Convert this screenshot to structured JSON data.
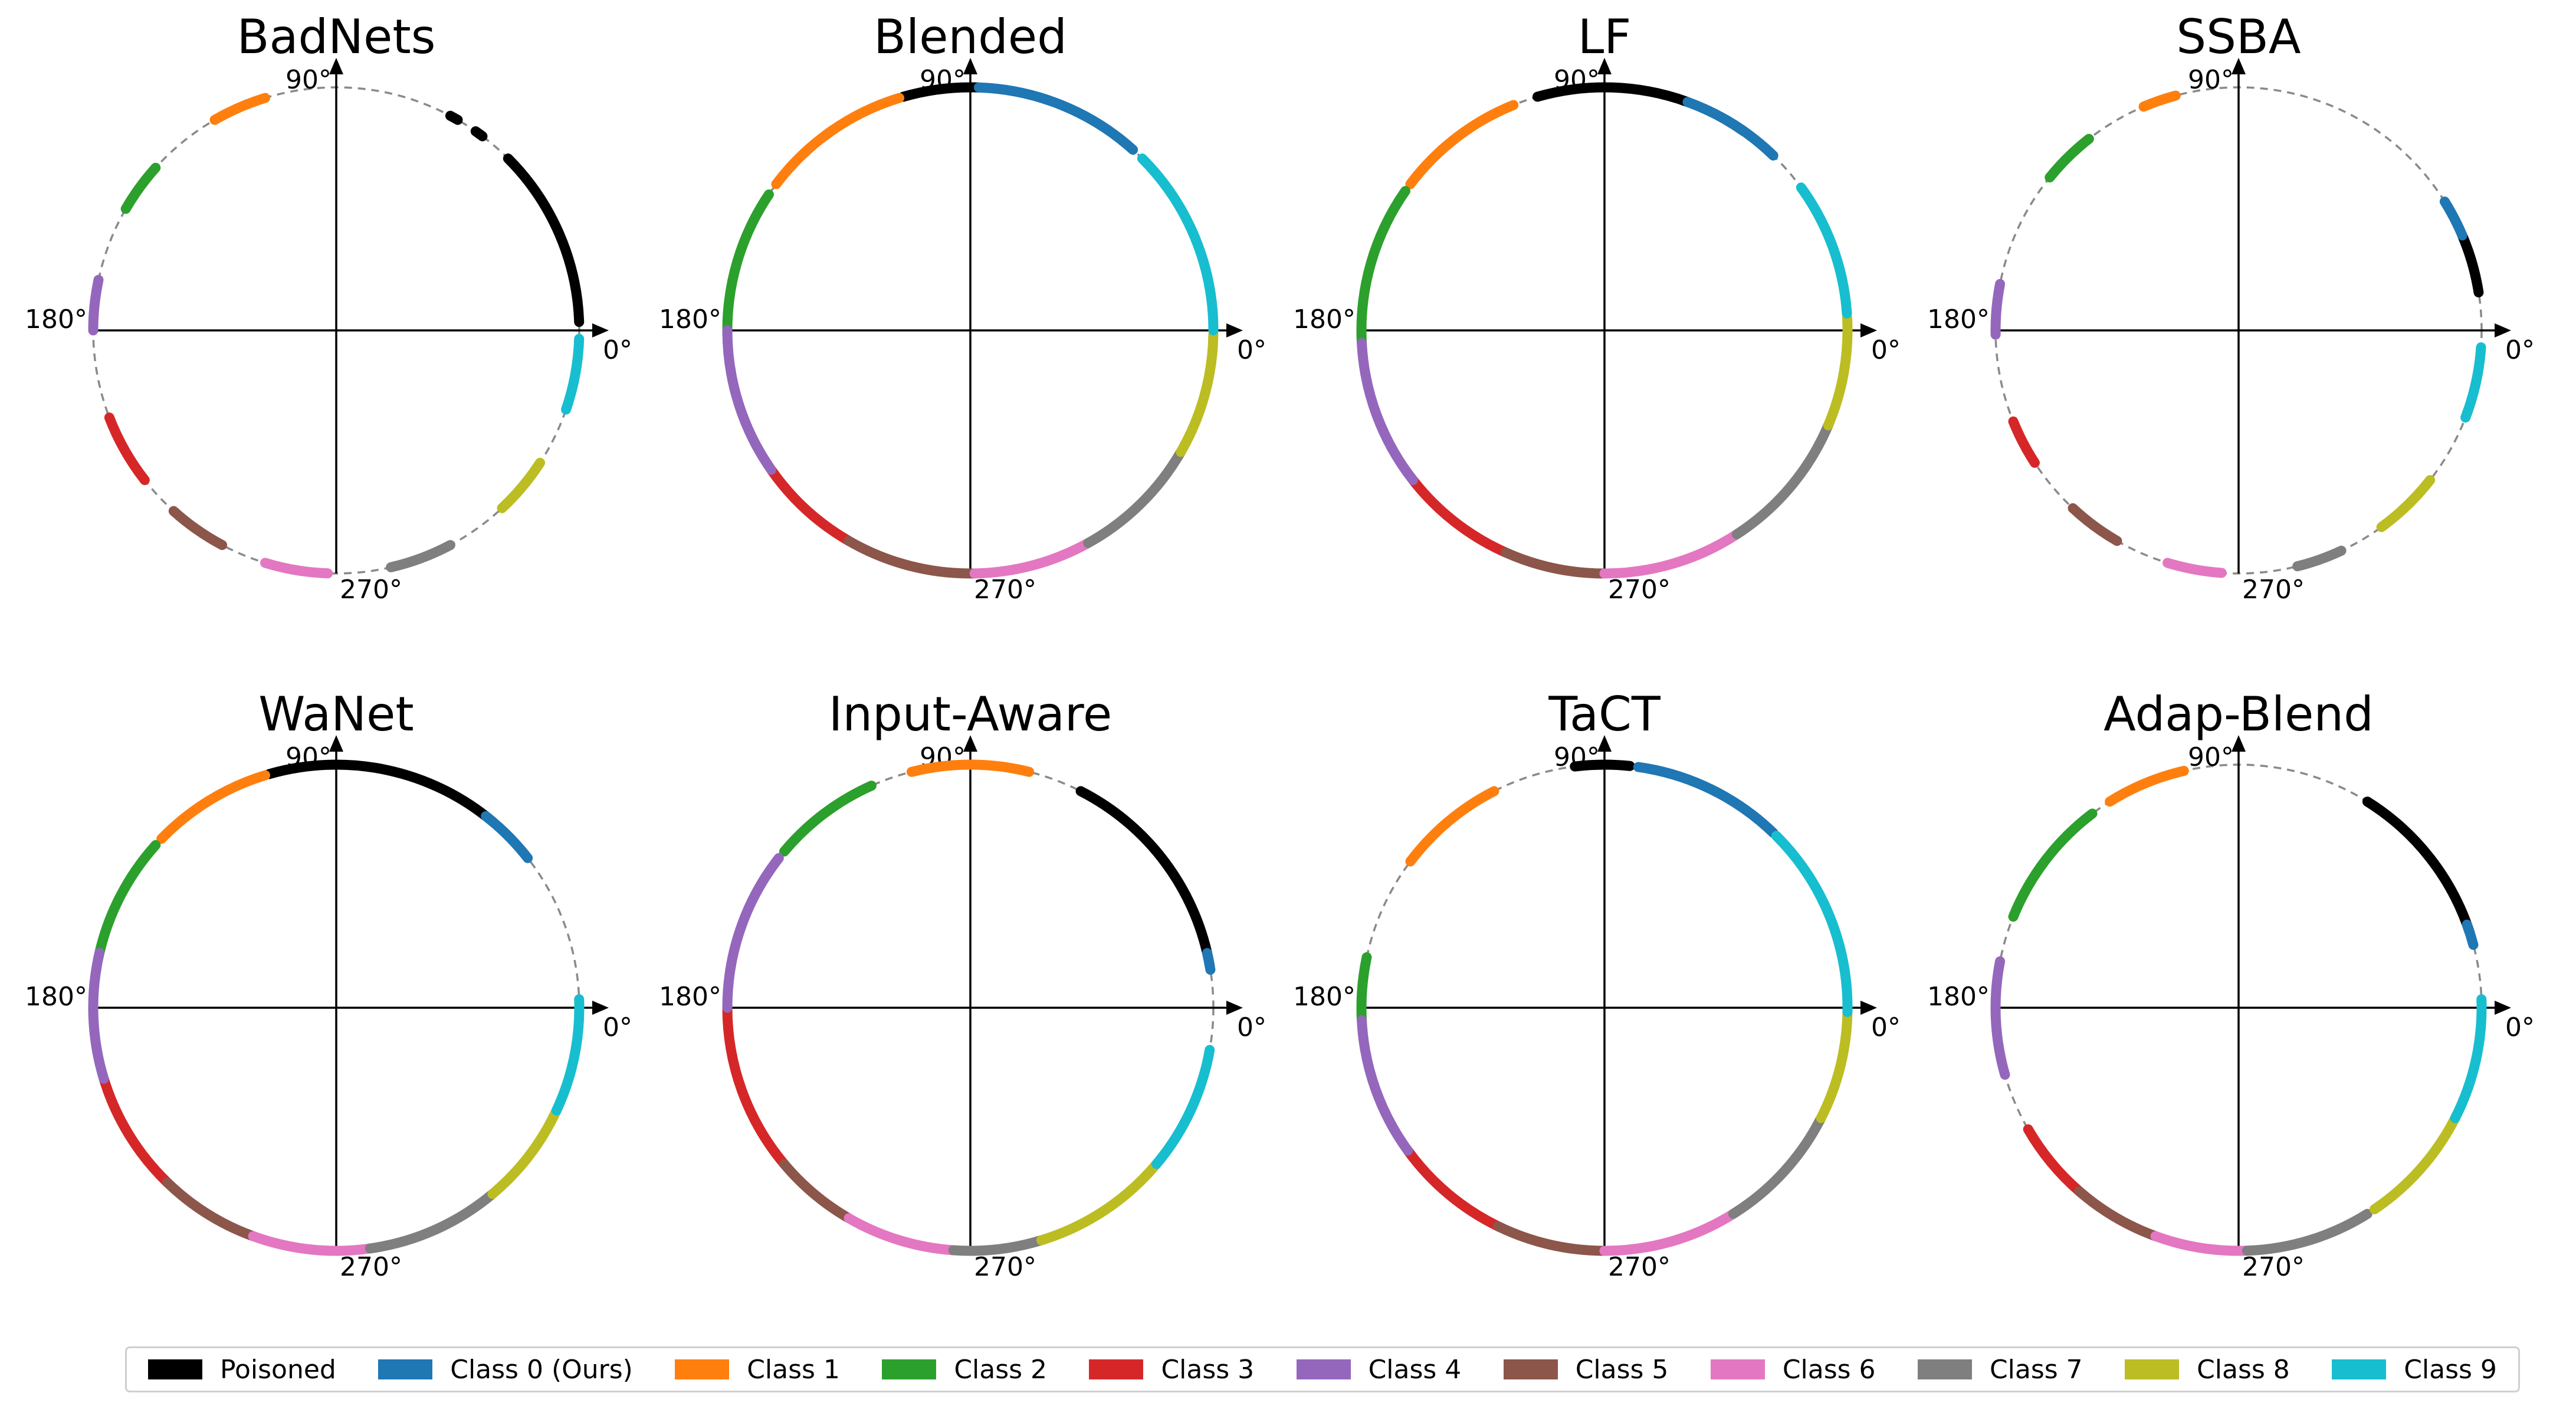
{
  "legend": [
    {
      "name": "Poisoned",
      "color": "#000000"
    },
    {
      "name": "Class 0 (Ours)",
      "color": "#1f77b4"
    },
    {
      "name": "Class 1",
      "color": "#ff7f0e"
    },
    {
      "name": "Class 2",
      "color": "#2ca02c"
    },
    {
      "name": "Class 3",
      "color": "#d62728"
    },
    {
      "name": "Class 4",
      "color": "#9467bd"
    },
    {
      "name": "Class 5",
      "color": "#8c564b"
    },
    {
      "name": "Class 6",
      "color": "#e377c2"
    },
    {
      "name": "Class 7",
      "color": "#7f7f7f"
    },
    {
      "name": "Class 8",
      "color": "#bcbd22"
    },
    {
      "name": "Class 9",
      "color": "#17becf"
    }
  ],
  "angle_labels": {
    "deg0": "0$^\\circ$",
    "deg90": "90$^\\circ$",
    "deg180": "180$^\\circ$",
    "deg270": "270$^\\circ$"
  },
  "chart_data": [
    {
      "type": "scatter",
      "title": "BadNets",
      "xlabel": "",
      "ylabel": "",
      "grid": false,
      "series": [
        {
          "name": "Poisoned",
          "arcs": [
            [
              2,
              45
            ],
            [
              53,
              55
            ],
            [
              60,
              62
            ]
          ]
        },
        {
          "name": "Class 0 (Ours)",
          "arcs": []
        },
        {
          "name": "Class 1",
          "arcs": [
            [
              107,
              120
            ]
          ]
        },
        {
          "name": "Class 2",
          "arcs": [
            [
              138,
              150
            ]
          ]
        },
        {
          "name": "Class 3",
          "arcs": [
            [
              201,
              218
            ]
          ]
        },
        {
          "name": "Class 4",
          "arcs": [
            [
              168,
              180
            ]
          ]
        },
        {
          "name": "Class 5",
          "arcs": [
            [
              228,
              242
            ]
          ]
        },
        {
          "name": "Class 6",
          "arcs": [
            [
              253,
              268
            ]
          ]
        },
        {
          "name": "Class 7",
          "arcs": [
            [
              283,
              298
            ]
          ]
        },
        {
          "name": "Class 8",
          "arcs": [
            [
              313,
              327
            ]
          ]
        },
        {
          "name": "Class 9",
          "arcs": [
            [
              341,
              358
            ]
          ]
        }
      ]
    },
    {
      "type": "scatter",
      "title": "Blended",
      "xlabel": "",
      "ylabel": "",
      "grid": false,
      "series": [
        {
          "name": "Poisoned",
          "arcs": [
            [
              88,
              106
            ]
          ]
        },
        {
          "name": "Class 0 (Ours)",
          "arcs": [
            [
              48,
              88
            ]
          ]
        },
        {
          "name": "Class 1",
          "arcs": [
            [
              107,
              143
            ]
          ]
        },
        {
          "name": "Class 2",
          "arcs": [
            [
              146,
              181
            ]
          ]
        },
        {
          "name": "Class 3",
          "arcs": [
            [
              215,
              240
            ]
          ]
        },
        {
          "name": "Class 4",
          "arcs": [
            [
              180,
              215
            ]
          ]
        },
        {
          "name": "Class 5",
          "arcs": [
            [
              240,
              271
            ]
          ]
        },
        {
          "name": "Class 6",
          "arcs": [
            [
              271,
              299
            ]
          ]
        },
        {
          "name": "Class 7",
          "arcs": [
            [
              299,
              330
            ]
          ]
        },
        {
          "name": "Class 8",
          "arcs": [
            [
              330,
              359
            ]
          ]
        },
        {
          "name": "Class 9",
          "arcs": [
            [
              0,
              45
            ]
          ]
        }
      ]
    },
    {
      "type": "scatter",
      "title": "LF",
      "xlabel": "",
      "ylabel": "",
      "grid": false,
      "series": [
        {
          "name": "Poisoned",
          "arcs": [
            [
              70,
              106
            ],
            [
              55,
              60
            ]
          ]
        },
        {
          "name": "Class 0 (Ours)",
          "arcs": [
            [
              46,
              70
            ]
          ]
        },
        {
          "name": "Class 1",
          "arcs": [
            [
              112,
              143
            ]
          ]
        },
        {
          "name": "Class 2",
          "arcs": [
            [
              145,
              183
            ]
          ]
        },
        {
          "name": "Class 3",
          "arcs": [
            [
              218,
              246
            ]
          ]
        },
        {
          "name": "Class 4",
          "arcs": [
            [
              183,
              218
            ]
          ]
        },
        {
          "name": "Class 5",
          "arcs": [
            [
              246,
              270
            ]
          ]
        },
        {
          "name": "Class 6",
          "arcs": [
            [
              270,
              303
            ]
          ]
        },
        {
          "name": "Class 7",
          "arcs": [
            [
              303,
              337
            ]
          ]
        },
        {
          "name": "Class 8",
          "arcs": [
            [
              337,
              363
            ]
          ]
        },
        {
          "name": "Class 9",
          "arcs": [
            [
              4,
              36
            ]
          ]
        }
      ]
    },
    {
      "type": "scatter",
      "title": "SSBA",
      "xlabel": "",
      "ylabel": "",
      "grid": false,
      "series": [
        {
          "name": "Poisoned",
          "arcs": [
            [
              9,
              23
            ]
          ]
        },
        {
          "name": "Class 0 (Ours)",
          "arcs": [
            [
              23,
              32
            ]
          ]
        },
        {
          "name": "Class 1",
          "arcs": [
            [
              105,
              113
            ]
          ]
        },
        {
          "name": "Class 2",
          "arcs": [
            [
              128,
              141
            ]
          ]
        },
        {
          "name": "Class 3",
          "arcs": [
            [
              202,
              213
            ]
          ]
        },
        {
          "name": "Class 4",
          "arcs": [
            [
              169,
              181
            ]
          ]
        },
        {
          "name": "Class 5",
          "arcs": [
            [
              227,
              240
            ]
          ]
        },
        {
          "name": "Class 6",
          "arcs": [
            [
              253,
              266
            ]
          ]
        },
        {
          "name": "Class 7",
          "arcs": [
            [
              284,
              295
            ]
          ]
        },
        {
          "name": "Class 8",
          "arcs": [
            [
              306,
              322
            ]
          ]
        },
        {
          "name": "Class 9",
          "arcs": [
            [
              339,
              356
            ]
          ]
        }
      ]
    },
    {
      "type": "scatter",
      "title": "WaNet",
      "xlabel": "",
      "ylabel": "",
      "grid": false,
      "series": [
        {
          "name": "Poisoned",
          "arcs": [
            [
              50,
              106
            ]
          ]
        },
        {
          "name": "Class 0 (Ours)",
          "arcs": [
            [
              38,
              52
            ]
          ]
        },
        {
          "name": "Class 1",
          "arcs": [
            [
              107,
              136
            ]
          ]
        },
        {
          "name": "Class 2",
          "arcs": [
            [
              138,
              167
            ]
          ]
        },
        {
          "name": "Class 3",
          "arcs": [
            [
              197,
              226
            ]
          ]
        },
        {
          "name": "Class 4",
          "arcs": [
            [
              167,
              197
            ]
          ]
        },
        {
          "name": "Class 5",
          "arcs": [
            [
              226,
              250
            ]
          ]
        },
        {
          "name": "Class 6",
          "arcs": [
            [
              250,
              278
            ]
          ]
        },
        {
          "name": "Class 7",
          "arcs": [
            [
              278,
              310
            ]
          ]
        },
        {
          "name": "Class 8",
          "arcs": [
            [
              310,
              335
            ]
          ]
        },
        {
          "name": "Class 9",
          "arcs": [
            [
              335,
              362
            ]
          ]
        }
      ]
    },
    {
      "type": "scatter",
      "title": "Input-Aware",
      "xlabel": "",
      "ylabel": "",
      "grid": false,
      "series": [
        {
          "name": "Poisoned",
          "arcs": [
            [
              10,
              63
            ]
          ]
        },
        {
          "name": "Class 0 (Ours)",
          "arcs": [
            [
              9,
              13
            ]
          ]
        },
        {
          "name": "Class 1",
          "arcs": [
            [
              76,
              104
            ]
          ]
        },
        {
          "name": "Class 2",
          "arcs": [
            [
              114,
              140
            ]
          ]
        },
        {
          "name": "Class 3",
          "arcs": [
            [
              180,
              220
            ]
          ]
        },
        {
          "name": "Class 4",
          "arcs": [
            [
              142,
              180
            ]
          ]
        },
        {
          "name": "Class 5",
          "arcs": [
            [
              220,
              240
            ]
          ]
        },
        {
          "name": "Class 6",
          "arcs": [
            [
              240,
              266
            ]
          ]
        },
        {
          "name": "Class 7",
          "arcs": [
            [
              266,
              287
            ]
          ]
        },
        {
          "name": "Class 8",
          "arcs": [
            [
              287,
              320
            ]
          ]
        },
        {
          "name": "Class 9",
          "arcs": [
            [
              320,
              350
            ]
          ]
        }
      ]
    },
    {
      "type": "scatter",
      "title": "TaCT",
      "xlabel": "",
      "ylabel": "",
      "grid": false,
      "series": [
        {
          "name": "Poisoned",
          "arcs": [
            [
              84,
              97
            ]
          ]
        },
        {
          "name": "Class 0 (Ours)",
          "arcs": [
            [
              46,
              82
            ]
          ]
        },
        {
          "name": "Class 1",
          "arcs": [
            [
              117,
              143
            ]
          ]
        },
        {
          "name": "Class 2",
          "arcs": [
            [
              168,
              183
            ]
          ]
        },
        {
          "name": "Class 3",
          "arcs": [
            [
              216,
              244
            ]
          ]
        },
        {
          "name": "Class 4",
          "arcs": [
            [
              183,
              216
            ]
          ]
        },
        {
          "name": "Class 5",
          "arcs": [
            [
              244,
              270
            ]
          ]
        },
        {
          "name": "Class 6",
          "arcs": [
            [
              270,
              302
            ]
          ]
        },
        {
          "name": "Class 7",
          "arcs": [
            [
              302,
              333
            ]
          ]
        },
        {
          "name": "Class 8",
          "arcs": [
            [
              333,
              359
            ]
          ]
        },
        {
          "name": "Class 9",
          "arcs": [
            [
              359,
              405
            ]
          ]
        }
      ]
    },
    {
      "type": "scatter",
      "title": "Adap-Blend",
      "xlabel": "",
      "ylabel": "",
      "grid": false,
      "series": [
        {
          "name": "Poisoned",
          "arcs": [
            [
              18,
              58
            ]
          ]
        },
        {
          "name": "Class 0 (Ours)",
          "arcs": [
            [
              15,
              20
            ]
          ]
        },
        {
          "name": "Class 1",
          "arcs": [
            [
              103,
              122
            ]
          ]
        },
        {
          "name": "Class 2",
          "arcs": [
            [
              127,
              158
            ]
          ]
        },
        {
          "name": "Class 3",
          "arcs": [
            [
              210,
              229
            ]
          ]
        },
        {
          "name": "Class 4",
          "arcs": [
            [
              169,
              196
            ]
          ]
        },
        {
          "name": "Class 5",
          "arcs": [
            [
              229,
              250
            ]
          ]
        },
        {
          "name": "Class 6",
          "arcs": [
            [
              250,
              272
            ]
          ]
        },
        {
          "name": "Class 7",
          "arcs": [
            [
              272,
              302
            ]
          ]
        },
        {
          "name": "Class 8",
          "arcs": [
            [
              304,
              333
            ]
          ]
        },
        {
          "name": "Class 9",
          "arcs": [
            [
              333,
              362
            ]
          ]
        }
      ]
    }
  ]
}
